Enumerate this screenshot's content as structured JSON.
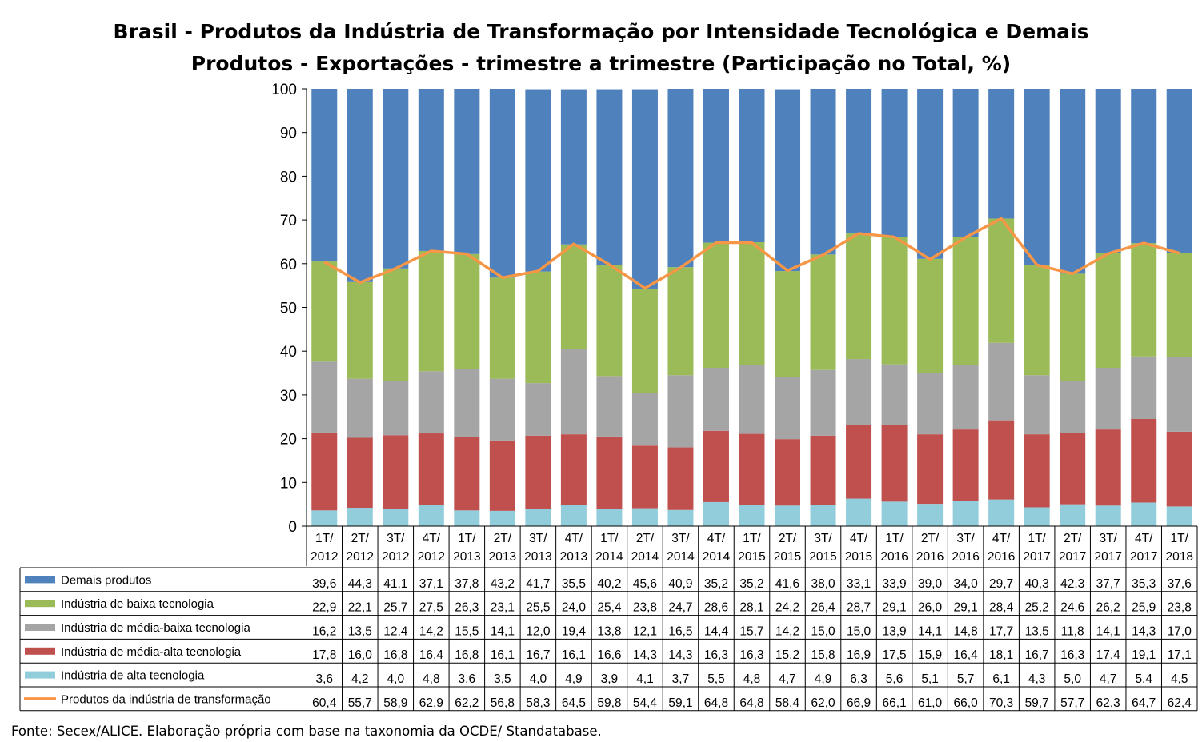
{
  "chart_data": {
    "type": "bar",
    "stacked": true,
    "title": "Brasil - Produtos da Indústria de Transformação por Intensidade Tecnológica e Demais Produtos - Exportações - trimestre a trimestre (Participação no Total, %)",
    "title_lines": [
      "Brasil - Produtos da Indústria de Transformação por Intensidade Tecnológica e Demais",
      "Produtos - Exportações - trimestre a trimestre (Participação no Total, %)"
    ],
    "categories": [
      "1T/2012",
      "2T/2012",
      "3T/2012",
      "4T/2012",
      "1T/2013",
      "2T/2013",
      "3T/2013",
      "4T/2013",
      "1T/2014",
      "2T/2014",
      "3T/2014",
      "4T/2014",
      "1T/2015",
      "2T/2015",
      "3T/2015",
      "4T/2015",
      "1T/2016",
      "2T/2016",
      "3T/2016",
      "4T/2016",
      "1T/2017",
      "2T/2017",
      "3T/2017",
      "4T/2017",
      "1T/2018"
    ],
    "ylim": [
      0,
      100
    ],
    "yticks": [
      0,
      10,
      20,
      30,
      40,
      50,
      60,
      70,
      80,
      90,
      100
    ],
    "grid": false,
    "legend_placement": "data-table",
    "series": [
      {
        "name": "Demais produtos",
        "type": "bar",
        "color": "#4F81BD",
        "values": [
          39.6,
          44.3,
          41.1,
          37.1,
          37.8,
          43.2,
          41.7,
          35.5,
          40.2,
          45.6,
          40.9,
          35.2,
          35.2,
          41.6,
          38.0,
          33.1,
          33.9,
          39.0,
          34.0,
          29.7,
          40.3,
          42.3,
          37.7,
          35.3,
          37.6
        ]
      },
      {
        "name": "Indústria de baixa tecnologia",
        "type": "bar",
        "color": "#9BBB59",
        "values": [
          22.9,
          22.1,
          25.7,
          27.5,
          26.3,
          23.1,
          25.5,
          24.0,
          25.4,
          23.8,
          24.7,
          28.6,
          28.1,
          24.2,
          26.4,
          28.7,
          29.1,
          26.0,
          29.1,
          28.4,
          25.2,
          24.6,
          26.2,
          25.9,
          23.8
        ]
      },
      {
        "name": "Indústria de média-baixa tecnologia",
        "type": "bar",
        "color": "#A5A5A5",
        "values": [
          16.2,
          13.5,
          12.4,
          14.2,
          15.5,
          14.1,
          12.0,
          19.4,
          13.8,
          12.1,
          16.5,
          14.4,
          15.7,
          14.2,
          15.0,
          15.0,
          13.9,
          14.1,
          14.8,
          17.7,
          13.5,
          11.8,
          14.1,
          14.3,
          17.0
        ]
      },
      {
        "name": "Indústria de média-alta tecnologia",
        "type": "bar",
        "color": "#C0504D",
        "values": [
          17.8,
          16.0,
          16.8,
          16.4,
          16.8,
          16.1,
          16.7,
          16.1,
          16.6,
          14.3,
          14.3,
          16.3,
          16.3,
          15.2,
          15.8,
          16.9,
          17.5,
          15.9,
          16.4,
          18.1,
          16.7,
          16.3,
          17.4,
          19.1,
          17.1
        ]
      },
      {
        "name": "Indústria de alta tecnologia",
        "type": "bar",
        "color": "#92CDDC",
        "values": [
          3.6,
          4.2,
          4.0,
          4.8,
          3.6,
          3.5,
          4.0,
          4.9,
          3.9,
          4.1,
          3.7,
          5.5,
          4.8,
          4.7,
          4.9,
          6.3,
          5.6,
          5.1,
          5.7,
          6.1,
          4.3,
          5.0,
          4.7,
          5.4,
          4.5
        ]
      },
      {
        "name": "Produtos da indústria de transformação",
        "type": "line",
        "color": "#F79646",
        "values": [
          60.4,
          55.7,
          58.9,
          62.9,
          62.2,
          56.8,
          58.3,
          64.5,
          59.8,
          54.4,
          59.1,
          64.8,
          64.8,
          58.4,
          62.0,
          66.9,
          66.1,
          61.0,
          66.0,
          70.3,
          59.7,
          57.7,
          62.3,
          64.7,
          62.4
        ]
      }
    ]
  },
  "source": "Fonte: Secex/ALICE. Elaboração própria com base na taxonomia da OCDE/ Standatabase."
}
